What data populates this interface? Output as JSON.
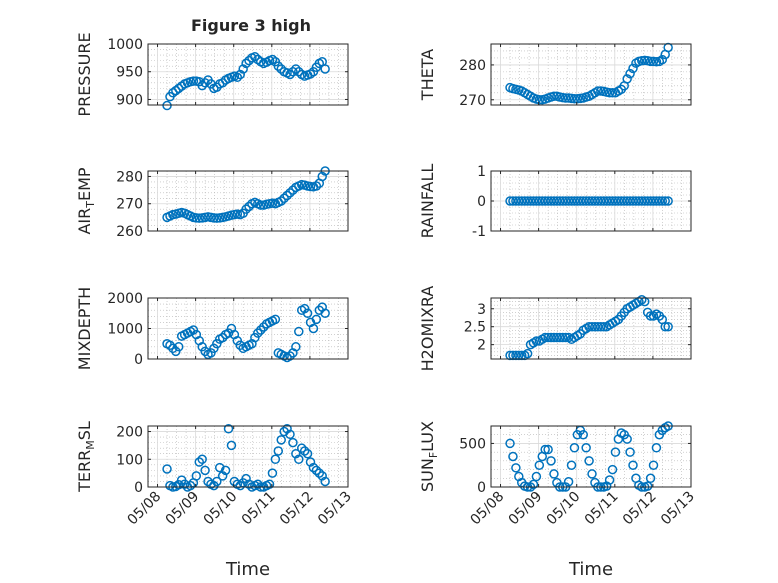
{
  "figure": {
    "title": "Figure 3 high"
  },
  "chart_data": [
    {
      "type": "scatter",
      "panel": "PRESSURE",
      "ylabel": "PRESSURE",
      "ylabel_sub": "",
      "ylabel_tail": "",
      "ylim": [
        890,
        1000
      ],
      "yticks": [
        900,
        950,
        1000
      ],
      "yticklabels": [
        "900",
        "950",
        "1000"
      ],
      "xlim": [
        7.75,
        13.0
      ],
      "xticks": [
        8,
        9,
        10,
        11,
        12,
        13
      ],
      "xticklabels": [
        "05/08",
        "05/09",
        "05/10",
        "05/11",
        "05/12",
        "05/13"
      ],
      "xlabel": "",
      "grid": true,
      "minor_grid": true,
      "series": [
        {
          "x_start": 8.25,
          "x_end": 12.4,
          "y": [
            889,
            905,
            912,
            916,
            920,
            924,
            928,
            930,
            932,
            933,
            933,
            932,
            925,
            930,
            935,
            928,
            920,
            922,
            928,
            930,
            935,
            938,
            940,
            942,
            940,
            945,
            955,
            965,
            970,
            975,
            977,
            972,
            968,
            965,
            967,
            970,
            972,
            968,
            960,
            955,
            950,
            948,
            945,
            950,
            955,
            950,
            945,
            942,
            944,
            946,
            950,
            958,
            965,
            968,
            955
          ]
        }
      ]
    },
    {
      "type": "scatter",
      "panel": "THETA",
      "ylabel": "THETA",
      "ylabel_sub": "",
      "ylabel_tail": "",
      "ylim": [
        268.5,
        286
      ],
      "yticks": [
        270,
        280
      ],
      "yticklabels": [
        "270",
        "280"
      ],
      "xlim": [
        7.75,
        13.0
      ],
      "xticks": [
        8,
        9,
        10,
        11,
        12,
        13
      ],
      "xticklabels": [
        "05/08",
        "05/09",
        "05/10",
        "05/11",
        "05/12",
        "05/13"
      ],
      "xlabel": "",
      "grid": true,
      "minor_grid": true,
      "series": [
        {
          "x_start": 8.25,
          "x_end": 12.4,
          "y": [
            273.5,
            273.2,
            273,
            272.8,
            272.5,
            272,
            271.5,
            271,
            270.5,
            270.2,
            270,
            270,
            270.2,
            270.5,
            270.8,
            271,
            271,
            270.8,
            270.6,
            270.5,
            270.5,
            270.4,
            270.3,
            270.3,
            270.4,
            270.5,
            270.8,
            271,
            271.5,
            272,
            272.5,
            272.5,
            272.4,
            272.2,
            272,
            272,
            272,
            272.5,
            273,
            274,
            276,
            277.5,
            279,
            280.5,
            281,
            281.2,
            281.3,
            281.2,
            281,
            281,
            280.9,
            281,
            281.5,
            283,
            285
          ]
        }
      ]
    },
    {
      "type": "scatter",
      "panel": "AIR_TEMP",
      "ylabel": "AIR",
      "ylabel_sub": "T",
      "ylabel_tail": "EMP",
      "ylim": [
        260,
        282
      ],
      "yticks": [
        260,
        270,
        280
      ],
      "yticklabels": [
        "260",
        "270",
        "280"
      ],
      "xlim": [
        7.75,
        13.0
      ],
      "xticks": [
        8,
        9,
        10,
        11,
        12,
        13
      ],
      "xticklabels": [
        "05/08",
        "05/09",
        "05/10",
        "05/11",
        "05/12",
        "05/13"
      ],
      "xlabel": "",
      "grid": true,
      "minor_grid": true,
      "series": [
        {
          "x_start": 8.25,
          "x_end": 12.4,
          "y": [
            265,
            265.5,
            266,
            266.2,
            266.5,
            266.8,
            266.5,
            266,
            265.5,
            265,
            264.8,
            264.7,
            264.8,
            265,
            265.2,
            265,
            264.8,
            264.7,
            264.8,
            265,
            265.2,
            265.5,
            265.8,
            266,
            266.2,
            266,
            266.5,
            268,
            269,
            270,
            270.5,
            270,
            269.5,
            269.5,
            269.8,
            270,
            270.2,
            270,
            270.5,
            271,
            272,
            273,
            274,
            275,
            276,
            276.5,
            277,
            276.8,
            276.5,
            276.3,
            276.2,
            276.5,
            277.5,
            280,
            282
          ]
        }
      ]
    },
    {
      "type": "scatter",
      "panel": "RAINFALL",
      "ylabel": "RAINFALL",
      "ylabel_sub": "",
      "ylabel_tail": "",
      "ylim": [
        -1,
        1
      ],
      "yticks": [
        -1,
        0,
        1
      ],
      "yticklabels": [
        "-1",
        "0",
        "1"
      ],
      "xlim": [
        7.75,
        13.0
      ],
      "xticks": [
        8,
        9,
        10,
        11,
        12,
        13
      ],
      "xticklabels": [
        "05/08",
        "05/09",
        "05/10",
        "05/11",
        "05/12",
        "05/13"
      ],
      "xlabel": "",
      "grid": true,
      "minor_grid": true,
      "series": [
        {
          "x_start": 8.25,
          "x_end": 12.4,
          "y": [
            0,
            0,
            0,
            0,
            0,
            0,
            0,
            0,
            0,
            0,
            0,
            0,
            0,
            0,
            0,
            0,
            0,
            0,
            0,
            0,
            0,
            0,
            0,
            0,
            0,
            0,
            0,
            0,
            0,
            0,
            0,
            0,
            0,
            0,
            0,
            0,
            0,
            0,
            0,
            0,
            0,
            0,
            0,
            0,
            0,
            0,
            0,
            0,
            0,
            0,
            0,
            0,
            0,
            0,
            0
          ]
        }
      ]
    },
    {
      "type": "scatter",
      "panel": "MIXDEPTH",
      "ylabel": "MIXDEPTH",
      "ylabel_sub": "",
      "ylabel_tail": "",
      "ylim": [
        0,
        2000
      ],
      "yticks": [
        0,
        1000,
        2000
      ],
      "yticklabels": [
        "0",
        "1000",
        "2000"
      ],
      "xlim": [
        7.75,
        13.0
      ],
      "xticks": [
        8,
        9,
        10,
        11,
        12,
        13
      ],
      "xticklabels": [
        "05/08",
        "05/09",
        "05/10",
        "05/11",
        "05/12",
        "05/13"
      ],
      "xlabel": "",
      "grid": true,
      "minor_grid": true,
      "series": [
        {
          "x_start": 8.25,
          "x_end": 12.4,
          "y": [
            500,
            450,
            350,
            250,
            400,
            750,
            800,
            850,
            900,
            950,
            800,
            600,
            400,
            250,
            150,
            200,
            350,
            500,
            650,
            700,
            800,
            850,
            1000,
            800,
            600,
            450,
            350,
            400,
            450,
            500,
            700,
            850,
            950,
            1050,
            1150,
            1200,
            1250,
            1300,
            200,
            150,
            100,
            50,
            100,
            200,
            400,
            900,
            1600,
            1650,
            1500,
            1200,
            1000,
            1300,
            1600,
            1700,
            1500
          ]
        }
      ]
    },
    {
      "type": "scatter",
      "panel": "H2OMIXRA",
      "ylabel": "H2OMIXRA",
      "ylabel_sub": "",
      "ylabel_tail": "",
      "ylim": [
        1.6,
        3.3
      ],
      "yticks": [
        2,
        2.5,
        3
      ],
      "yticklabels": [
        "2",
        "2.5",
        "3"
      ],
      "xlim": [
        7.75,
        13.0
      ],
      "xticks": [
        8,
        9,
        10,
        11,
        12,
        13
      ],
      "xticklabels": [
        "05/08",
        "05/09",
        "05/10",
        "05/11",
        "05/12",
        "05/13"
      ],
      "xlabel": "",
      "grid": true,
      "minor_grid": true,
      "series": [
        {
          "x_start": 8.25,
          "x_end": 12.4,
          "y": [
            1.7,
            1.7,
            1.7,
            1.7,
            1.7,
            1.7,
            1.75,
            2.0,
            2.05,
            2.1,
            2.1,
            2.15,
            2.2,
            2.2,
            2.2,
            2.2,
            2.2,
            2.2,
            2.2,
            2.2,
            2.2,
            2.15,
            2.2,
            2.25,
            2.3,
            2.4,
            2.45,
            2.5,
            2.5,
            2.5,
            2.5,
            2.5,
            2.5,
            2.5,
            2.55,
            2.6,
            2.65,
            2.7,
            2.8,
            2.9,
            3.0,
            3.05,
            3.1,
            3.15,
            3.2,
            3.25,
            3.2,
            2.9,
            2.8,
            2.8,
            2.85,
            2.8,
            2.7,
            2.5,
            2.5
          ]
        }
      ]
    },
    {
      "type": "scatter",
      "panel": "TERR_MSL",
      "ylabel": "TERR",
      "ylabel_sub": "M",
      "ylabel_tail": "SL",
      "ylim": [
        0,
        220
      ],
      "yticks": [
        0,
        100,
        200
      ],
      "yticklabels": [
        "0",
        "100",
        "200"
      ],
      "xlim": [
        7.75,
        13.0
      ],
      "xticks": [
        8,
        9,
        10,
        11,
        12,
        13
      ],
      "xticklabels": [
        "05/08",
        "05/09",
        "05/10",
        "05/11",
        "05/12",
        "05/13"
      ],
      "xlabel": "Time",
      "grid": true,
      "minor_grid": true,
      "series": [
        {
          "x_start": 8.25,
          "x_end": 12.4,
          "y": [
            65,
            5,
            0,
            2,
            8,
            25,
            10,
            0,
            5,
            15,
            40,
            90,
            100,
            60,
            20,
            10,
            5,
            20,
            70,
            40,
            60,
            210,
            150,
            20,
            10,
            5,
            15,
            30,
            10,
            0,
            5,
            10,
            0,
            0,
            5,
            10,
            50,
            100,
            130,
            170,
            200,
            210,
            190,
            160,
            120,
            100,
            140,
            130,
            120,
            90,
            70,
            60,
            50,
            40,
            20
          ]
        }
      ]
    },
    {
      "type": "scatter",
      "panel": "SUN_FLUX",
      "ylabel": "SUN",
      "ylabel_sub": "F",
      "ylabel_tail": "LUX",
      "ylim": [
        0,
        700
      ],
      "yticks": [
        0,
        500
      ],
      "yticklabels": [
        "0",
        "500"
      ],
      "xlim": [
        7.75,
        13.0
      ],
      "xticks": [
        8,
        9,
        10,
        11,
        12,
        13
      ],
      "xticklabels": [
        "05/08",
        "05/09",
        "05/10",
        "05/11",
        "05/12",
        "05/13"
      ],
      "xlabel": "Time",
      "grid": true,
      "minor_grid": true,
      "series": [
        {
          "x_start": 8.25,
          "x_end": 12.4,
          "y": [
            500,
            350,
            220,
            120,
            50,
            10,
            0,
            0,
            30,
            120,
            250,
            350,
            430,
            430,
            300,
            150,
            50,
            0,
            0,
            0,
            60,
            250,
            450,
            600,
            650,
            600,
            450,
            300,
            150,
            50,
            0,
            0,
            0,
            10,
            80,
            200,
            400,
            550,
            620,
            600,
            550,
            400,
            250,
            100,
            20,
            0,
            0,
            10,
            100,
            250,
            450,
            600,
            650,
            680,
            700
          ]
        }
      ]
    }
  ]
}
